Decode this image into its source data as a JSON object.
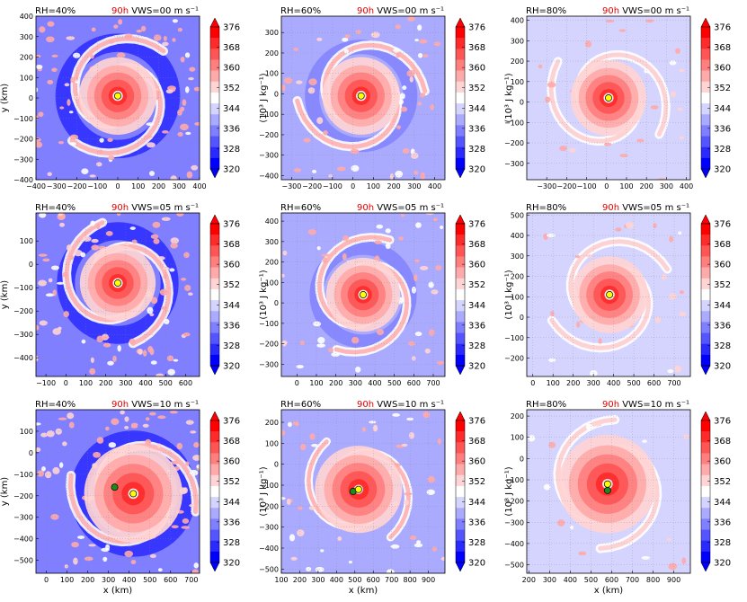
{
  "figure": {
    "colorbar_label_plain": "(10³ J kg⁻¹)",
    "colorbar_ticks": [
      "376",
      "368",
      "360",
      "352",
      "344",
      "336",
      "328",
      "320"
    ],
    "colorbar_colors": [
      "#0000ff",
      "#2a2aff",
      "#5555ff",
      "#7f7fff",
      "#aaaaff",
      "#d4d4ff",
      "#ffffff",
      "#ffd4d4",
      "#ffaaaa",
      "#ff7f7f",
      "#ff5555",
      "#ff2a2a",
      "#ff0000"
    ],
    "xlabel": "x (km)",
    "ylabel": "y (km)"
  },
  "chart_data": [
    {
      "type": "heatmap",
      "rh": "RH=40%",
      "time": "90h",
      "vws": "VWS=00 m s⁻¹",
      "xlim": [
        -400,
        400
      ],
      "ylim": [
        -400,
        400
      ],
      "xticks": [
        "−400",
        "−300",
        "−200",
        "−100",
        "0",
        "100",
        "200",
        "300",
        "400"
      ],
      "yticks": [
        "400",
        "300",
        "200",
        "100",
        "0",
        "−100",
        "−200",
        "−300",
        "−400"
      ],
      "center": [
        0,
        10
      ],
      "green": null,
      "vws_key": "00",
      "rh_key": 40
    },
    {
      "type": "heatmap",
      "rh": "RH=60%",
      "time": "90h",
      "vws": "VWS=00 m s⁻¹",
      "xlim": [
        -350,
        450
      ],
      "ylim": [
        -420,
        380
      ],
      "xticks": [
        "−300",
        "−200",
        "−100",
        "0",
        "100",
        "200",
        "300",
        "400"
      ],
      "yticks": [
        "300",
        "200",
        "100",
        "0",
        "−100",
        "−200",
        "−300",
        "−400"
      ],
      "center": [
        40,
        -10
      ],
      "green": null,
      "vws_key": "00",
      "rh_key": 60
    },
    {
      "type": "heatmap",
      "rh": "RH=80%",
      "time": "90h",
      "vws": "VWS=00 m s⁻¹",
      "xlim": [
        -400,
        420
      ],
      "ylim": [
        -380,
        420
      ],
      "xticks": [
        "−300",
        "−200",
        "−100",
        "0",
        "100",
        "200",
        "300",
        "400"
      ],
      "yticks": [
        "400",
        "300",
        "200",
        "100",
        "0",
        "−100",
        "−200",
        "−300"
      ],
      "center": [
        10,
        20
      ],
      "green": null,
      "vws_key": "00",
      "rh_key": 80
    },
    {
      "type": "heatmap",
      "rh": "RH=40%",
      "time": "90h",
      "vws": "VWS=05 m s⁻¹",
      "xlim": [
        -150,
        670
      ],
      "ylim": [
        -480,
        220
      ],
      "xticks": [
        "−100",
        "0",
        "100",
        "200",
        "300",
        "400",
        "500",
        "600"
      ],
      "yticks": [
        "100",
        "0",
        "−100",
        "−200",
        "−300",
        "−400"
      ],
      "center": [
        260,
        -80
      ],
      "green": null,
      "vws_key": "05",
      "rh_key": 40
    },
    {
      "type": "heatmap",
      "rh": "RH=60%",
      "time": "90h",
      "vws": "VWS=05 m s⁻¹",
      "xlim": [
        -80,
        760
      ],
      "ylim": [
        -360,
        440
      ],
      "xticks": [
        "0",
        "100",
        "200",
        "300",
        "400",
        "500",
        "600",
        "700"
      ],
      "yticks": [
        "400",
        "300",
        "200",
        "100",
        "0",
        "−100",
        "−200",
        "−300"
      ],
      "center": [
        340,
        40
      ],
      "green": null,
      "vws_key": "05",
      "rh_key": 60
    },
    {
      "type": "heatmap",
      "rh": "RH=80%",
      "time": "90h",
      "vws": "VWS=05 m s⁻¹",
      "xlim": [
        -30,
        780
      ],
      "ylim": [
        -290,
        510
      ],
      "xticks": [
        "0",
        "100",
        "200",
        "300",
        "400",
        "500",
        "600",
        "700"
      ],
      "yticks": [
        "500",
        "400",
        "300",
        "200",
        "100",
        "0",
        "−100",
        "−200"
      ],
      "center": [
        380,
        110
      ],
      "green": null,
      "vws_key": "05",
      "rh_key": 80
    },
    {
      "type": "heatmap",
      "rh": "RH=40%",
      "time": "90h",
      "vws": "VWS=10 m s⁻¹",
      "xlim": [
        -50,
        740
      ],
      "ylim": [
        -560,
        200
      ],
      "xticks": [
        "0",
        "100",
        "200",
        "300",
        "400",
        "500",
        "600",
        "700"
      ],
      "yticks": [
        "100",
        "0",
        "−100",
        "−200",
        "−300",
        "−400",
        "−500"
      ],
      "center": [
        420,
        -190
      ],
      "green": [
        330,
        -160
      ],
      "vws_key": "10",
      "rh_key": 40
    },
    {
      "type": "heatmap",
      "rh": "RH=60%",
      "time": "90h",
      "vws": "VWS=10 m s⁻¹",
      "xlim": [
        100,
        990
      ],
      "ylim": [
        -520,
        260
      ],
      "xticks": [
        "100",
        "200",
        "300",
        "400",
        "500",
        "600",
        "700",
        "800",
        "900"
      ],
      "yticks": [
        "200",
        "100",
        "0",
        "−100",
        "−200",
        "−300",
        "−400",
        "−500"
      ],
      "center": [
        520,
        -120
      ],
      "green": [
        490,
        -130
      ],
      "vws_key": "10",
      "rh_key": 60
    },
    {
      "type": "heatmap",
      "rh": "RH=80%",
      "time": "90h",
      "vws": "VWS=10 m s⁻¹",
      "xlim": [
        190,
        980
      ],
      "ylim": [
        -540,
        230
      ],
      "xticks": [
        "200",
        "300",
        "400",
        "500",
        "600",
        "700",
        "800",
        "900"
      ],
      "yticks": [
        "200",
        "100",
        "0",
        "−100",
        "−200",
        "−300",
        "−400",
        "−500"
      ],
      "center": [
        580,
        -120
      ],
      "green": [
        580,
        -150
      ],
      "vws_key": "10",
      "rh_key": 80
    }
  ]
}
